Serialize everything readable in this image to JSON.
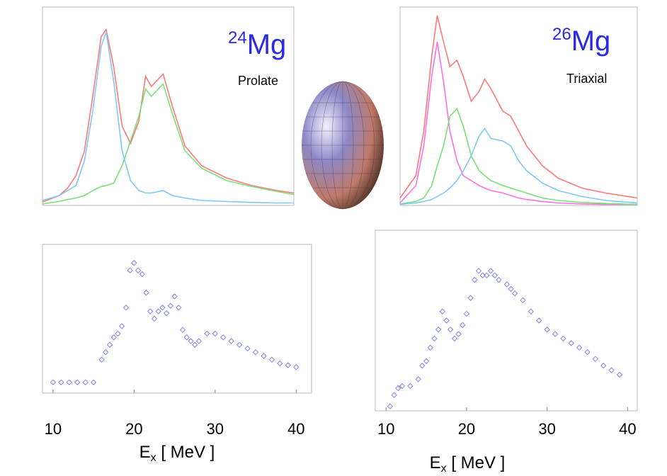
{
  "chart_data": [
    {
      "type": "line",
      "nucleus": {
        "mass": "24",
        "symbol": "Mg"
      },
      "shape": "Prolate",
      "xlim": [
        10,
        40
      ],
      "ylim": [
        0,
        400
      ],
      "x": [
        10,
        12,
        13,
        14,
        15,
        16,
        17,
        17.6,
        18.5,
        19.5,
        20.5,
        21.5,
        22.3,
        23,
        24.4,
        25.5,
        27,
        29,
        32,
        35,
        38,
        40
      ],
      "series": [
        {
          "color": "#ff7878",
          "values": [
            7,
            20,
            35,
            60,
            110,
            220,
            340,
            355,
            280,
            160,
            125,
            170,
            260,
            240,
            265,
            200,
            120,
            80,
            55,
            40,
            30,
            25
          ]
        },
        {
          "color": "#78e078",
          "values": [
            3,
            8,
            12,
            15,
            20,
            30,
            38,
            40,
            45,
            80,
            130,
            180,
            235,
            220,
            245,
            185,
            110,
            75,
            50,
            38,
            28,
            22
          ]
        },
        {
          "color": "#7cc8f8",
          "values": [
            10,
            20,
            30,
            40,
            90,
            190,
            320,
            350,
            250,
            110,
            50,
            30,
            25,
            25,
            30,
            20,
            15,
            10,
            8,
            6,
            5,
            5
          ]
        }
      ]
    },
    {
      "type": "line",
      "nucleus": {
        "mass": "26",
        "symbol": "Mg"
      },
      "shape": "Triaxial",
      "xlim": [
        10,
        40
      ],
      "ylim": [
        0,
        400
      ],
      "x": [
        10,
        12,
        13,
        14,
        14.7,
        15.5,
        16.3,
        17.2,
        18,
        19,
        20,
        20.7,
        21.5,
        23,
        24,
        25,
        26,
        28,
        30,
        33,
        36,
        40
      ],
      "series": [
        {
          "color": "#ff7878",
          "values": [
            15,
            60,
            150,
            300,
            383,
            330,
            280,
            293,
            260,
            210,
            230,
            255,
            235,
            190,
            180,
            150,
            120,
            80,
            55,
            35,
            25,
            15
          ]
        },
        {
          "color": "#ff6ee6",
          "values": [
            5,
            40,
            120,
            260,
            330,
            250,
            150,
            90,
            60,
            50,
            40,
            35,
            30,
            25,
            20,
            15,
            12,
            8,
            5,
            3,
            2,
            2
          ]
        },
        {
          "color": "#78e078",
          "values": [
            3,
            8,
            15,
            40,
            80,
            120,
            180,
            195,
            160,
            100,
            70,
            60,
            50,
            40,
            35,
            30,
            25,
            15,
            10,
            6,
            4,
            2
          ]
        },
        {
          "color": "#7cc8f8",
          "values": [
            2,
            5,
            8,
            12,
            18,
            25,
            35,
            50,
            70,
            100,
            140,
            155,
            135,
            130,
            120,
            90,
            70,
            45,
            30,
            18,
            10,
            5
          ]
        }
      ]
    },
    {
      "type": "scatter",
      "color": "#8484ee",
      "xlim": [
        8.7,
        41.9
      ],
      "ylim": [
        0,
        400
      ],
      "xticks": [
        10,
        20,
        30,
        40
      ],
      "xlabel": {
        "main": "E",
        "sub": "x",
        "rest": " [ MeV ]"
      },
      "x": [
        10,
        11,
        12,
        13,
        14,
        15,
        16,
        16.5,
        17,
        17.5,
        18,
        18.5,
        19,
        19.5,
        20,
        20.5,
        21,
        21.5,
        22,
        22.5,
        23,
        23.5,
        24,
        24.5,
        25,
        25.5,
        26,
        26.5,
        27,
        27.5,
        28,
        29,
        30,
        31,
        32,
        33,
        34,
        35,
        36,
        37,
        38,
        39,
        40
      ],
      "values": [
        29,
        29,
        29,
        29,
        29,
        29,
        90,
        110,
        130,
        150,
        160,
        180,
        230,
        330,
        350,
        330,
        320,
        270,
        220,
        200,
        220,
        230,
        215,
        235,
        260,
        230,
        170,
        150,
        140,
        130,
        140,
        160,
        160,
        150,
        140,
        130,
        120,
        110,
        100,
        90,
        80,
        75,
        70
      ]
    },
    {
      "type": "scatter",
      "color": "#8484ee",
      "xlim": [
        8.66,
        41.2
      ],
      "ylim": [
        0,
        400
      ],
      "xticks": [
        10,
        20,
        30,
        40
      ],
      "xlabel": {
        "main": "E",
        "sub": "x",
        "rest": " [ MeV ]"
      },
      "x": [
        10.5,
        11,
        11.5,
        12,
        13,
        14,
        14.5,
        15,
        15.5,
        16,
        16.5,
        17,
        17.5,
        18,
        18.5,
        19,
        19.5,
        20,
        20.5,
        21,
        21.5,
        22,
        22.5,
        23,
        23.5,
        24,
        25,
        25.5,
        26,
        27,
        28,
        29,
        30,
        31,
        32,
        33,
        34,
        35,
        36,
        37,
        38,
        39
      ],
      "values": [
        10,
        35,
        50,
        55,
        55,
        70,
        100,
        110,
        140,
        160,
        180,
        220,
        200,
        180,
        160,
        170,
        190,
        215,
        250,
        290,
        310,
        300,
        300,
        310,
        300,
        290,
        280,
        270,
        260,
        245,
        220,
        200,
        180,
        170,
        160,
        150,
        140,
        130,
        115,
        100,
        90,
        80
      ]
    }
  ]
}
